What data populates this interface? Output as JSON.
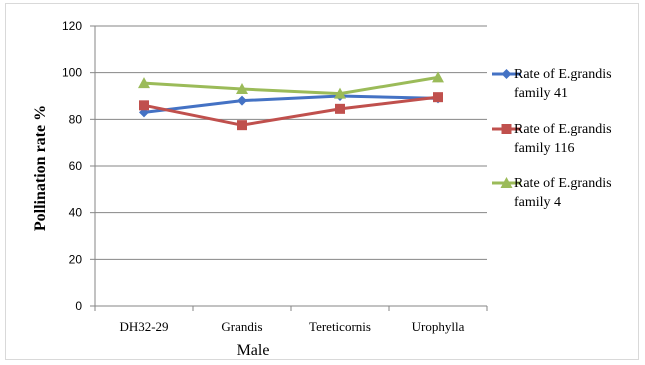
{
  "chart_data": {
    "type": "line",
    "title": "",
    "xlabel": "Male",
    "ylabel": "Pollination rate %",
    "categories": [
      "DH32-29",
      "Grandis",
      "Tereticornis",
      "Urophylla"
    ],
    "ylim": [
      0,
      120
    ],
    "yticks": [
      "0",
      "20",
      "40",
      "60",
      "80",
      "100",
      "120"
    ],
    "grid": true,
    "legend_position": "right",
    "series": [
      {
        "name": "Rate of E.grandis family 41",
        "name_lines": [
          "Rate of E.grandis",
          "family 41"
        ],
        "values": [
          83,
          88,
          90,
          89
        ],
        "color": "#4472C4",
        "marker": "diamond"
      },
      {
        "name": "Rate of E.grandis family 116",
        "name_lines": [
          "Rate of E.grandis",
          "family 116"
        ],
        "values": [
          86,
          77.5,
          84.5,
          89.5
        ],
        "color": "#C0504D",
        "marker": "square"
      },
      {
        "name": "Rate of E.grandis family 4",
        "name_lines": [
          "Rate of E.grandis",
          "family 4"
        ],
        "values": [
          95.5,
          93,
          91,
          98
        ],
        "color": "#9BBB59",
        "marker": "triangle"
      }
    ]
  }
}
